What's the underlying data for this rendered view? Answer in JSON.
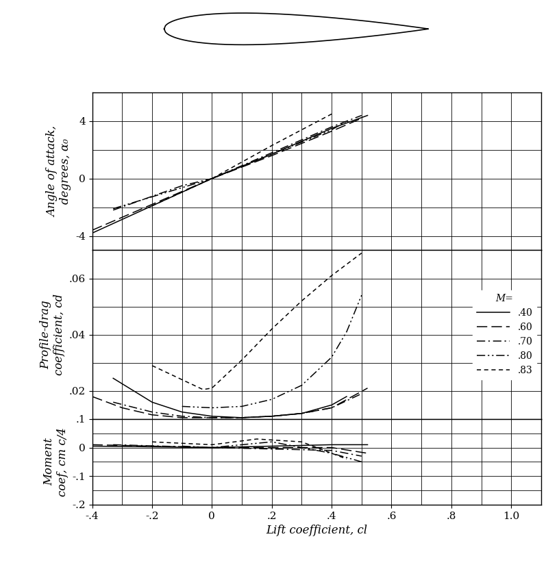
{
  "chart_data": [
    {
      "type": "line",
      "y_label": "Angle of attack,\ndegrees, α₀",
      "xlim": [
        -0.4,
        1.1
      ],
      "xticks": [
        {
          "value": -0.4,
          "label": "-.4"
        },
        {
          "value": -0.2,
          "label": "-.2"
        },
        0,
        {
          "value": 0.2,
          "label": ".2"
        },
        {
          "value": 0.4,
          "label": ".4"
        },
        {
          "value": 0.6,
          "label": ".6"
        },
        {
          "value": 0.8,
          "label": ".8"
        },
        {
          "value": 1.0,
          "label": "1.0"
        }
      ],
      "ylim": [
        -5,
        6
      ],
      "yticks": [
        -4,
        0,
        4
      ],
      "grid": true,
      "tick_labels": "y",
      "series": [
        {
          "name": ".40",
          "color": "#000000",
          "line_style": "solid",
          "x": [
            -0.4,
            0,
            0.2,
            0.4,
            0.52
          ],
          "values": [
            -3.8,
            0,
            1.7,
            3.5,
            4.4
          ]
        },
        {
          "name": ".60",
          "color": "#000000",
          "line_style": "long_dash",
          "x": [
            -0.4,
            0,
            0.2,
            0.4,
            0.5
          ],
          "values": [
            -3.6,
            0,
            1.6,
            3.3,
            4.2
          ]
        },
        {
          "name": ".70",
          "color": "#000000",
          "line_style": "dashdot",
          "x": [
            -0.33,
            -0.1,
            0,
            0.2,
            0.4,
            0.5
          ],
          "values": [
            -2.2,
            -0.5,
            0,
            1.8,
            3.6,
            4.4
          ]
        },
        {
          "name": ".80",
          "color": "#000000",
          "line_style": "dashdotdot",
          "x": [
            -0.33,
            0,
            0.2,
            0.4,
            0.45
          ],
          "values": [
            -2.1,
            0,
            1.7,
            3.4,
            4.0
          ]
        },
        {
          "name": ".83",
          "color": "#000000",
          "line_style": "short_dash",
          "x": [
            -0.2,
            0,
            0.2,
            0.4
          ],
          "values": [
            -1.9,
            0,
            2.3,
            4.5
          ]
        }
      ]
    },
    {
      "type": "line",
      "y_label": "Profile-drag\ncoefficient, cd",
      "xlim": [
        -0.4,
        1.1
      ],
      "xticks": [
        {
          "value": -0.4,
          "label": "-.4"
        },
        {
          "value": -0.2,
          "label": "-.2"
        },
        0,
        {
          "value": 0.2,
          "label": ".2"
        },
        {
          "value": 0.4,
          "label": ".4"
        },
        {
          "value": 0.6,
          "label": ".6"
        },
        {
          "value": 0.8,
          "label": ".8"
        },
        {
          "value": 1.0,
          "label": "1.0"
        }
      ],
      "ylim": [
        0.01,
        0.07
      ],
      "yticks": [
        {
          "value": 0.02,
          "label": ".02"
        },
        {
          "value": 0.04,
          "label": ".04"
        },
        {
          "value": 0.06,
          "label": ".06"
        }
      ],
      "grid": true,
      "tick_labels": "y",
      "legend": "center right",
      "legend_title": "M=",
      "series": [
        {
          "name": ".40",
          "color": "#000000",
          "line_style": "solid",
          "x": [
            -0.33,
            -0.2,
            -0.1,
            0,
            0.1,
            0.2,
            0.3,
            0.4,
            0.45
          ],
          "values": [
            0.0245,
            0.016,
            0.0125,
            0.011,
            0.0105,
            0.011,
            0.012,
            0.015,
            0.018
          ]
        },
        {
          "name": ".60",
          "color": "#000000",
          "line_style": "long_dash",
          "x": [
            -0.4,
            -0.3,
            -0.2,
            -0.1,
            0,
            0.1,
            0.2,
            0.3,
            0.4,
            0.52
          ],
          "values": [
            0.018,
            0.014,
            0.0115,
            0.0105,
            0.0105,
            0.0105,
            0.011,
            0.012,
            0.014,
            0.021
          ]
        },
        {
          "name": ".70",
          "color": "#000000",
          "line_style": "dashdot",
          "x": [
            -0.33,
            -0.2,
            -0.1,
            0,
            0.1,
            0.2,
            0.3,
            0.4,
            0.5
          ],
          "values": [
            0.016,
            0.0125,
            0.011,
            0.0105,
            0.0105,
            0.011,
            0.012,
            0.014,
            0.019
          ]
        },
        {
          "name": ".80",
          "color": "#000000",
          "line_style": "dashdotdot",
          "x": [
            -0.1,
            0,
            0.1,
            0.2,
            0.3,
            0.4,
            0.45,
            0.5
          ],
          "values": [
            0.0145,
            0.014,
            0.0145,
            0.017,
            0.022,
            0.032,
            0.041,
            0.054
          ]
        },
        {
          "name": ".83",
          "color": "#000000",
          "line_style": "short_dash",
          "x": [
            -0.2,
            -0.1,
            -0.03,
            0,
            0.1,
            0.2,
            0.3,
            0.4,
            0.5
          ],
          "values": [
            0.029,
            0.024,
            0.0205,
            0.021,
            0.031,
            0.042,
            0.052,
            0.061,
            0.069
          ]
        }
      ]
    },
    {
      "type": "line",
      "x_label": "Lift coefficient, cl",
      "y_label": "Moment\ncoef, cm c/4",
      "xlim": [
        -0.4,
        1.1
      ],
      "xticks": [
        {
          "value": -0.4,
          "label": "-.4"
        },
        {
          "value": -0.2,
          "label": "-.2"
        },
        0,
        {
          "value": 0.2,
          "label": ".2"
        },
        {
          "value": 0.4,
          "label": ".4"
        },
        {
          "value": 0.6,
          "label": ".6"
        },
        {
          "value": 0.8,
          "label": ".8"
        },
        {
          "value": 1.0,
          "label": "1.0"
        }
      ],
      "ylim": [
        -0.2,
        0.1
      ],
      "yticks": [
        {
          "value": -0.2,
          "label": "-.2"
        },
        {
          "value": -0.1,
          "label": "-.1"
        },
        0,
        {
          "value": 0.1,
          "label": ".1"
        }
      ],
      "grid": true,
      "series": [
        {
          "name": ".40",
          "color": "#000000",
          "line_style": "solid",
          "x": [
            -0.4,
            0,
            0.4,
            0.52
          ],
          "values": [
            0.005,
            0.0,
            0.01,
            0.01
          ]
        },
        {
          "name": ".60",
          "color": "#000000",
          "line_style": "long_dash",
          "x": [
            -0.4,
            0,
            0.4,
            0.52
          ],
          "values": [
            0.01,
            0.0,
            0.0,
            -0.02
          ]
        },
        {
          "name": ".70",
          "color": "#000000",
          "line_style": "dashdot",
          "x": [
            -0.33,
            0,
            0.4,
            0.5
          ],
          "values": [
            0.01,
            0.0,
            -0.01,
            -0.03
          ]
        },
        {
          "name": ".80",
          "color": "#000000",
          "line_style": "dashdotdot",
          "x": [
            -0.1,
            0,
            0.2,
            0.4,
            0.5
          ],
          "values": [
            0.005,
            0.0,
            0.02,
            -0.02,
            -0.05
          ]
        },
        {
          "name": ".83",
          "color": "#000000",
          "line_style": "short_dash",
          "x": [
            -0.2,
            0,
            0.15,
            0.3,
            0.45
          ],
          "values": [
            0.02,
            0.01,
            0.03,
            0.02,
            -0.04
          ]
        }
      ]
    }
  ]
}
